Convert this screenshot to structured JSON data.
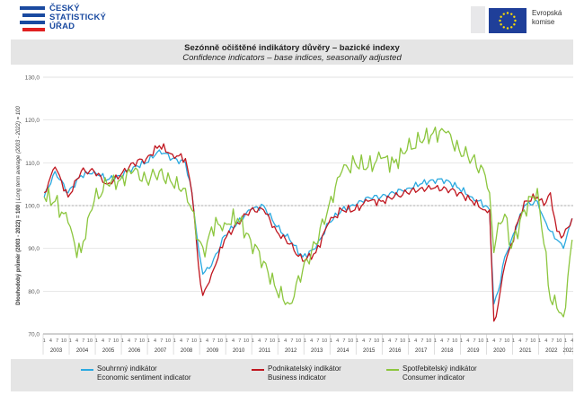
{
  "header": {
    "csu_logo_lines": [
      "ČESKÝ",
      "STATISTICKÝ",
      "ÚŘAD"
    ],
    "eu_logo_lines": [
      "Evropská",
      "komise"
    ]
  },
  "colors": {
    "economic": "#2aa9e0",
    "business": "#c0161f",
    "consumer": "#8cc63e",
    "grid": "#d9d9d9",
    "axis_text": "#595959"
  },
  "chart_data": {
    "type": "line",
    "title": "Sezónně očištěné indikátory důvěry – bazické indexy",
    "subtitle": "Confidence indicators – base indices, seasonally adjusted",
    "ylabel_cz": "Dlouhodobý průměr (2003 - 2022) = 100",
    "ylabel_en": " | Long term average (2003 - 2022) = 100",
    "ylim": [
      70,
      130
    ],
    "yticks": [
      "70,0",
      "80,0",
      "90,0",
      "100,0",
      "110,0",
      "120,0",
      "130,0"
    ],
    "reference_line": 100,
    "grid": true,
    "legend_position": "bottom",
    "x_month_ticks": [
      "1",
      "4",
      "7",
      "10"
    ],
    "years": [
      "2003",
      "2004",
      "2005",
      "2006",
      "2007",
      "2008",
      "2009",
      "2010",
      "2011",
      "2012",
      "2013",
      "2014",
      "2015",
      "2016",
      "2017",
      "2018",
      "2019",
      "2020",
      "2021",
      "2022",
      "2023"
    ],
    "last_year_month_ticks": [
      "1",
      "4"
    ],
    "series": [
      {
        "name": "Souhrnný indikátor",
        "name_en": "Economic sentiment indicator",
        "keypoints": [
          [
            "2003-01",
            102
          ],
          [
            "2003-06",
            108
          ],
          [
            "2003-12",
            103
          ],
          [
            "2004-06",
            107
          ],
          [
            "2004-12",
            108
          ],
          [
            "2005-06",
            106
          ],
          [
            "2005-12",
            107
          ],
          [
            "2006-06",
            109
          ],
          [
            "2006-12",
            110
          ],
          [
            "2007-06",
            113
          ],
          [
            "2007-12",
            111
          ],
          [
            "2008-06",
            110
          ],
          [
            "2008-09",
            103
          ],
          [
            "2008-12",
            90
          ],
          [
            "2009-02",
            84
          ],
          [
            "2009-06",
            86
          ],
          [
            "2009-12",
            93
          ],
          [
            "2010-06",
            96
          ],
          [
            "2010-12",
            99
          ],
          [
            "2011-06",
            100
          ],
          [
            "2011-12",
            95
          ],
          [
            "2012-06",
            92
          ],
          [
            "2012-12",
            88
          ],
          [
            "2013-06",
            90
          ],
          [
            "2013-12",
            96
          ],
          [
            "2014-06",
            99
          ],
          [
            "2014-12",
            100
          ],
          [
            "2015-06",
            102
          ],
          [
            "2015-12",
            102
          ],
          [
            "2016-06",
            103
          ],
          [
            "2016-12",
            104
          ],
          [
            "2017-06",
            105
          ],
          [
            "2017-12",
            106
          ],
          [
            "2018-06",
            106
          ],
          [
            "2018-12",
            104
          ],
          [
            "2019-06",
            102
          ],
          [
            "2019-12",
            100
          ],
          [
            "2020-02",
            99
          ],
          [
            "2020-04",
            77
          ],
          [
            "2020-06",
            80
          ],
          [
            "2020-09",
            88
          ],
          [
            "2020-12",
            92
          ],
          [
            "2021-06",
            100
          ],
          [
            "2021-12",
            101
          ],
          [
            "2022-03",
            97
          ],
          [
            "2022-06",
            94
          ],
          [
            "2022-09",
            92
          ],
          [
            "2022-12",
            90
          ],
          [
            "2023-04",
            97
          ]
        ]
      },
      {
        "name": "Podnikatelský indikátor",
        "name_en": "Business indicator",
        "keypoints": [
          [
            "2003-01",
            103
          ],
          [
            "2003-06",
            109
          ],
          [
            "2003-12",
            102
          ],
          [
            "2004-06",
            108
          ],
          [
            "2004-12",
            108
          ],
          [
            "2005-06",
            105
          ],
          [
            "2005-12",
            107
          ],
          [
            "2006-06",
            110
          ],
          [
            "2006-12",
            111
          ],
          [
            "2007-06",
            114
          ],
          [
            "2007-12",
            112
          ],
          [
            "2008-06",
            111
          ],
          [
            "2008-09",
            103
          ],
          [
            "2008-12",
            86
          ],
          [
            "2009-02",
            79
          ],
          [
            "2009-06",
            84
          ],
          [
            "2009-12",
            92
          ],
          [
            "2010-06",
            96
          ],
          [
            "2010-12",
            99
          ],
          [
            "2011-06",
            99
          ],
          [
            "2011-12",
            94
          ],
          [
            "2012-06",
            91
          ],
          [
            "2012-12",
            87
          ],
          [
            "2013-06",
            89
          ],
          [
            "2013-12",
            96
          ],
          [
            "2014-06",
            99
          ],
          [
            "2014-12",
            99
          ],
          [
            "2015-06",
            101
          ],
          [
            "2015-12",
            101
          ],
          [
            "2016-06",
            102
          ],
          [
            "2016-12",
            103
          ],
          [
            "2017-06",
            104
          ],
          [
            "2017-12",
            104
          ],
          [
            "2018-06",
            104
          ],
          [
            "2018-12",
            103
          ],
          [
            "2019-06",
            101
          ],
          [
            "2019-12",
            99
          ],
          [
            "2020-02",
            99
          ],
          [
            "2020-04",
            73
          ],
          [
            "2020-06",
            77
          ],
          [
            "2020-09",
            86
          ],
          [
            "2020-12",
            91
          ],
          [
            "2021-06",
            101
          ],
          [
            "2021-12",
            102
          ],
          [
            "2022-03",
            100
          ],
          [
            "2022-06",
            103
          ],
          [
            "2022-09",
            94
          ],
          [
            "2022-12",
            93
          ],
          [
            "2023-04",
            97
          ]
        ]
      },
      {
        "name": "Spotřebitelský indikátor",
        "name_en": "Consumer indicator",
        "keypoints": [
          [
            "2003-01",
            102
          ],
          [
            "2003-06",
            101
          ],
          [
            "2003-12",
            96
          ],
          [
            "2004-03",
            91
          ],
          [
            "2004-06",
            89
          ],
          [
            "2004-09",
            97
          ],
          [
            "2004-12",
            101
          ],
          [
            "2005-06",
            105
          ],
          [
            "2005-12",
            106
          ],
          [
            "2006-06",
            108
          ],
          [
            "2006-12",
            106
          ],
          [
            "2007-06",
            108
          ],
          [
            "2007-12",
            105
          ],
          [
            "2008-06",
            104
          ],
          [
            "2008-09",
            99
          ],
          [
            "2008-12",
            92
          ],
          [
            "2009-03",
            88
          ],
          [
            "2009-06",
            95
          ],
          [
            "2009-12",
            96
          ],
          [
            "2010-06",
            97
          ],
          [
            "2010-12",
            92
          ],
          [
            "2011-06",
            87
          ],
          [
            "2011-12",
            80
          ],
          [
            "2012-06",
            77
          ],
          [
            "2012-12",
            85
          ],
          [
            "2013-06",
            91
          ],
          [
            "2013-12",
            100
          ],
          [
            "2014-06",
            108
          ],
          [
            "2014-12",
            110
          ],
          [
            "2015-06",
            109
          ],
          [
            "2015-12",
            111
          ],
          [
            "2016-06",
            110
          ],
          [
            "2016-12",
            113
          ],
          [
            "2017-06",
            115
          ],
          [
            "2017-12",
            117
          ],
          [
            "2018-06",
            117
          ],
          [
            "2018-12",
            113
          ],
          [
            "2019-06",
            111
          ],
          [
            "2019-12",
            107
          ],
          [
            "2020-02",
            103
          ],
          [
            "2020-04",
            89
          ],
          [
            "2020-06",
            96
          ],
          [
            "2020-09",
            98
          ],
          [
            "2020-12",
            90
          ],
          [
            "2021-06",
            99
          ],
          [
            "2021-12",
            104
          ],
          [
            "2022-03",
            91
          ],
          [
            "2022-06",
            78
          ],
          [
            "2022-09",
            76
          ],
          [
            "2022-12",
            74
          ],
          [
            "2023-04",
            92
          ]
        ]
      }
    ]
  }
}
